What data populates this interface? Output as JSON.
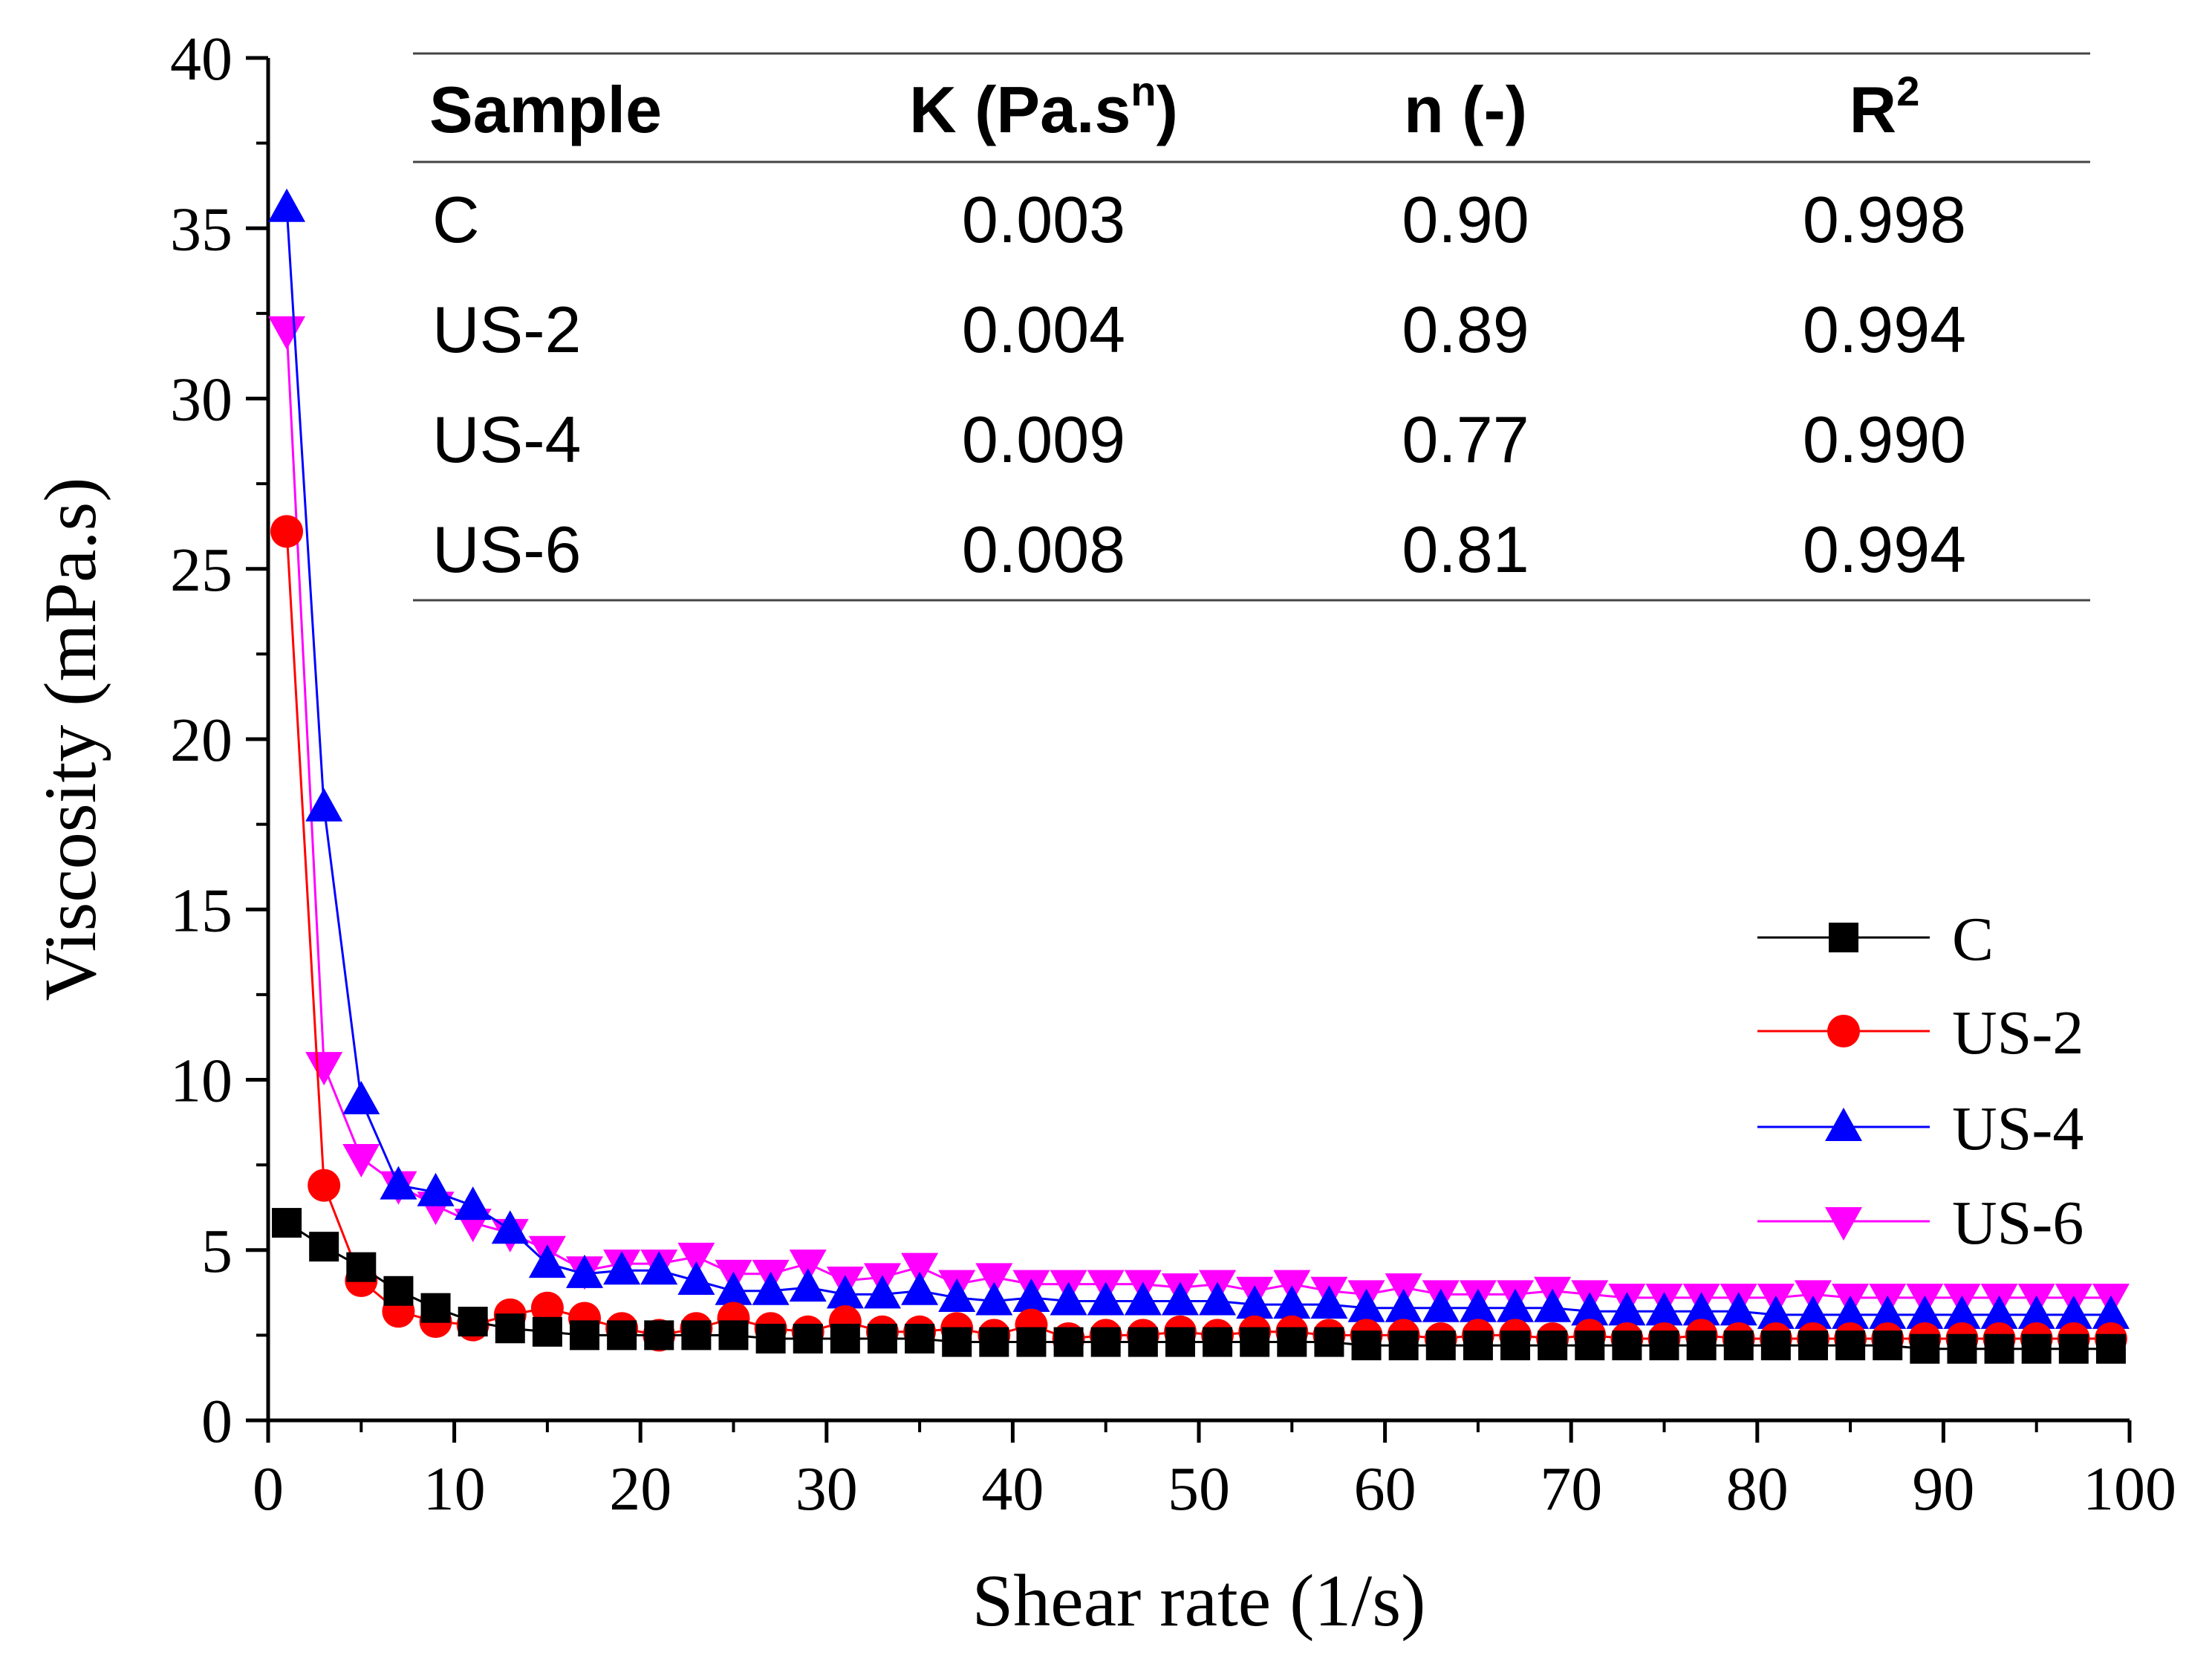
{
  "chart_data": {
    "type": "line",
    "xlabel": "Shear rate (1/s)",
    "ylabel": "Viscosity (mPa.s)",
    "xlim": [
      0,
      100
    ],
    "ylim": [
      0,
      40
    ],
    "xticks": [
      "0",
      "10",
      "20",
      "30",
      "40",
      "50",
      "60",
      "70",
      "80",
      "90",
      "100"
    ],
    "yticks": [
      "0",
      "5",
      "10",
      "15",
      "20",
      "25",
      "30",
      "35",
      "40"
    ],
    "legend_position": "right",
    "x": [
      1,
      3,
      5,
      7,
      9,
      11,
      13,
      15,
      17,
      19,
      21,
      23,
      25,
      27,
      29,
      31,
      33,
      35,
      37,
      39,
      41,
      43,
      45,
      47,
      49,
      51,
      53,
      55,
      57,
      59,
      61,
      63,
      65,
      67,
      69,
      71,
      73,
      75,
      77,
      79,
      81,
      83,
      85,
      87,
      89,
      91,
      93,
      95,
      97,
      99
    ],
    "series": [
      {
        "name": "C",
        "color": "#000000",
        "marker": "square",
        "values": [
          5.8,
          5.1,
          4.5,
          3.8,
          3.3,
          2.9,
          2.7,
          2.6,
          2.5,
          2.5,
          2.5,
          2.5,
          2.5,
          2.4,
          2.4,
          2.4,
          2.4,
          2.4,
          2.3,
          2.3,
          2.3,
          2.3,
          2.3,
          2.3,
          2.3,
          2.3,
          2.3,
          2.3,
          2.3,
          2.2,
          2.2,
          2.2,
          2.2,
          2.2,
          2.2,
          2.2,
          2.2,
          2.2,
          2.2,
          2.2,
          2.2,
          2.2,
          2.2,
          2.2,
          2.1,
          2.1,
          2.1,
          2.1,
          2.1,
          2.1
        ]
      },
      {
        "name": "US-2",
        "color": "#ff0000",
        "marker": "circle",
        "values": [
          26.1,
          6.9,
          4.1,
          3.2,
          2.9,
          2.8,
          3.1,
          3.3,
          3.0,
          2.7,
          2.5,
          2.7,
          3.0,
          2.7,
          2.6,
          2.9,
          2.6,
          2.6,
          2.7,
          2.5,
          2.8,
          2.4,
          2.5,
          2.5,
          2.6,
          2.5,
          2.6,
          2.6,
          2.5,
          2.5,
          2.5,
          2.4,
          2.5,
          2.5,
          2.4,
          2.5,
          2.4,
          2.4,
          2.5,
          2.4,
          2.4,
          2.4,
          2.4,
          2.4,
          2.4,
          2.4,
          2.4,
          2.4,
          2.4,
          2.4
        ]
      },
      {
        "name": "US-4",
        "color": "#0000ff",
        "marker": "triangle-up",
        "values": [
          35.6,
          18.0,
          9.4,
          6.9,
          6.7,
          6.3,
          5.6,
          4.6,
          4.3,
          4.4,
          4.4,
          4.1,
          3.8,
          3.8,
          3.9,
          3.7,
          3.7,
          3.8,
          3.6,
          3.5,
          3.6,
          3.5,
          3.5,
          3.5,
          3.5,
          3.5,
          3.4,
          3.4,
          3.4,
          3.3,
          3.3,
          3.3,
          3.3,
          3.3,
          3.3,
          3.2,
          3.2,
          3.2,
          3.2,
          3.2,
          3.1,
          3.1,
          3.1,
          3.1,
          3.1,
          3.1,
          3.1,
          3.1,
          3.1,
          3.1
        ]
      },
      {
        "name": "US-6",
        "color": "#ff00ff",
        "marker": "triangle-down",
        "values": [
          32.0,
          10.4,
          7.7,
          6.9,
          6.3,
          5.8,
          5.5,
          5.0,
          4.4,
          4.6,
          4.6,
          4.8,
          4.3,
          4.3,
          4.6,
          4.1,
          4.2,
          4.5,
          4.0,
          4.2,
          4.0,
          4.0,
          4.0,
          4.0,
          3.9,
          4.0,
          3.8,
          4.0,
          3.8,
          3.7,
          3.9,
          3.7,
          3.7,
          3.7,
          3.8,
          3.7,
          3.6,
          3.6,
          3.6,
          3.6,
          3.6,
          3.7,
          3.6,
          3.6,
          3.6,
          3.6,
          3.6,
          3.6,
          3.6,
          3.6
        ]
      }
    ],
    "table": {
      "headers": [
        "Sample",
        "K (Pa.s",
        "n",
        ")",
        "n (-)",
        "R",
        "2"
      ],
      "rows": [
        [
          "C",
          "0.003",
          "0.90",
          "0.998"
        ],
        [
          "US-2",
          "0.004",
          "0.89",
          "0.994"
        ],
        [
          "US-4",
          "0.009",
          "0.77",
          "0.990"
        ],
        [
          "US-6",
          "0.008",
          "0.81",
          "0.994"
        ]
      ]
    }
  }
}
